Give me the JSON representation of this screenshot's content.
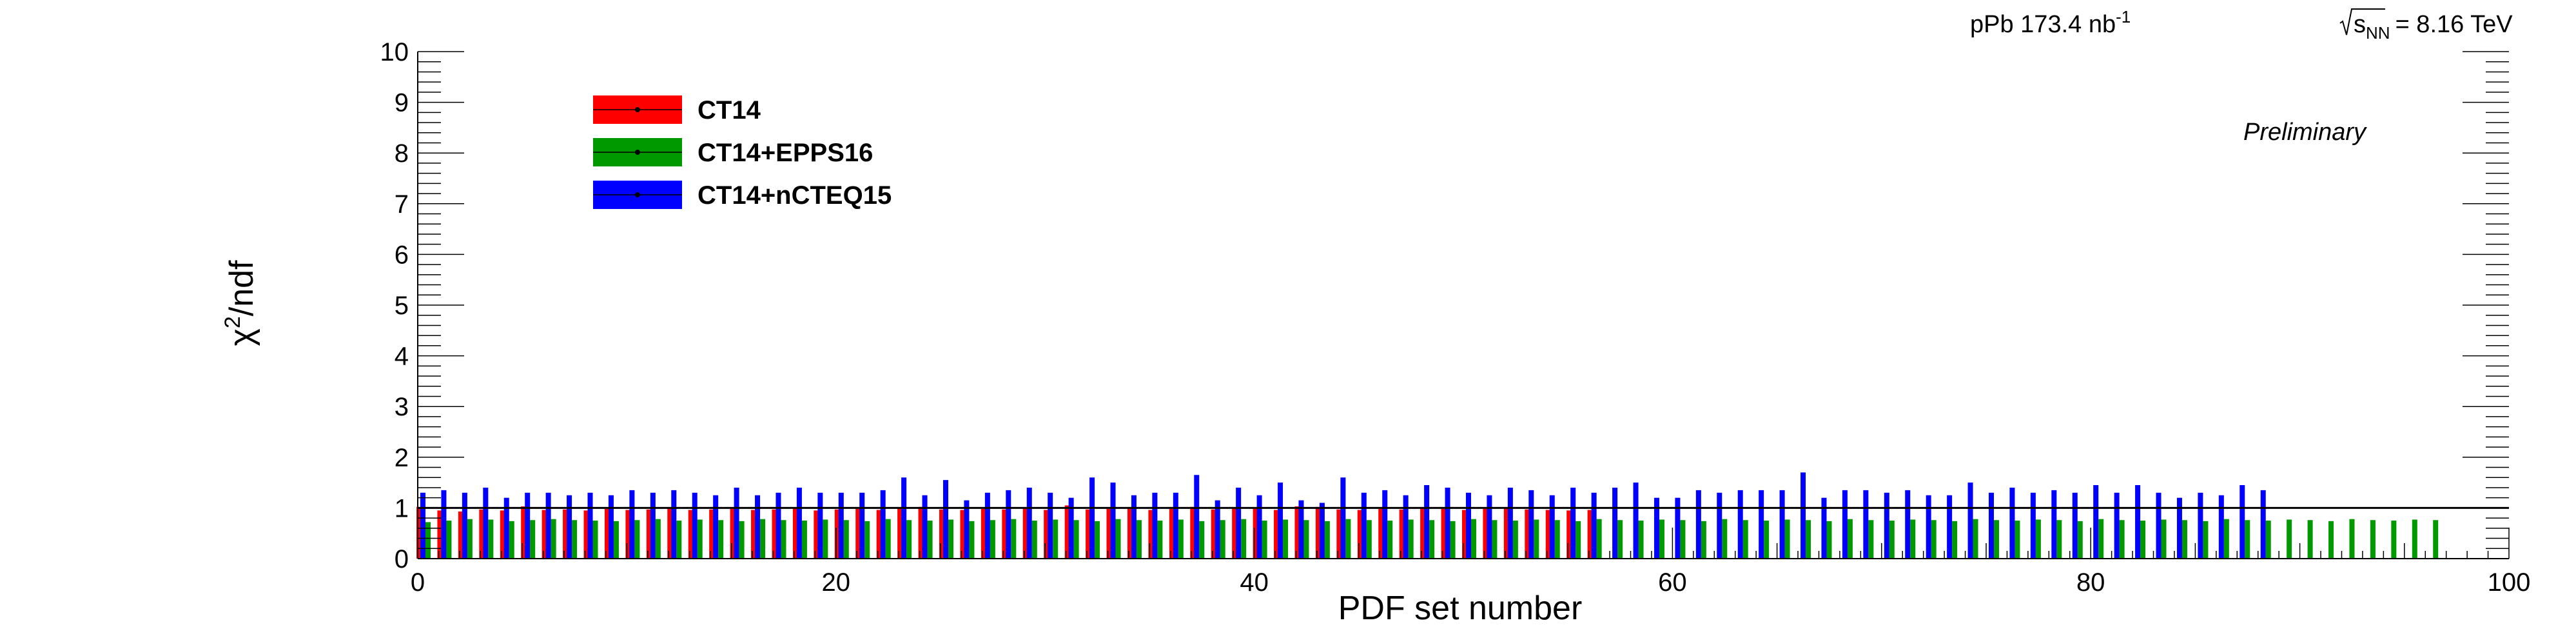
{
  "header": {
    "lumi_label": "pPb 173.4 nb",
    "lumi_exp": "-1",
    "energy_sqrt": "s",
    "energy_sub": "NN",
    "energy_value": "= 8.16 TeV",
    "preliminary": "Preliminary"
  },
  "colors": {
    "CT14": "#ff0000",
    "CT14+EPPS16": "#009900",
    "CT14+nCTEQ15": "#0000ff"
  },
  "chart_data": {
    "type": "bar",
    "title": "",
    "xlabel": "PDF set number",
    "ylabel_main": "χ",
    "ylabel_sup": "2",
    "ylabel_tail": "/ndf",
    "xlim": [
      0,
      100
    ],
    "ylim": [
      0,
      10
    ],
    "x_ticks": [
      0,
      20,
      40,
      60,
      80,
      100
    ],
    "y_ticks": [
      0,
      1,
      2,
      3,
      4,
      5,
      6,
      7,
      8,
      9,
      10
    ],
    "reference_line_y": 1,
    "legend_position": "top-left",
    "series": [
      {
        "name": "CT14",
        "x": [
          0,
          1,
          2,
          3,
          4,
          5,
          6,
          7,
          8,
          9,
          10,
          11,
          12,
          13,
          14,
          15,
          16,
          17,
          18,
          19,
          20,
          21,
          22,
          23,
          24,
          25,
          26,
          27,
          28,
          29,
          30,
          31,
          32,
          33,
          34,
          35,
          36,
          37,
          38,
          39,
          40,
          41,
          42,
          43,
          44,
          45,
          46,
          47,
          48,
          49,
          50,
          51,
          52,
          53,
          54,
          55,
          56
        ],
        "values": [
          1.02,
          0.95,
          0.93,
          0.97,
          0.95,
          1.03,
          0.96,
          0.97,
          0.95,
          0.98,
          0.96,
          0.97,
          0.99,
          0.96,
          0.97,
          0.98,
          0.96,
          0.97,
          0.99,
          0.95,
          0.97,
          0.98,
          0.96,
          1.0,
          1.02,
          0.97,
          0.96,
          0.98,
          0.97,
          0.99,
          0.96,
          1.05,
          0.97,
          0.98,
          0.99,
          0.96,
          0.98,
          1.02,
          0.97,
          1.0,
          0.99,
          0.96,
          1.03,
          1.02,
          0.97,
          0.96,
          0.98,
          0.97,
          0.99,
          0.98,
          0.96,
          0.98,
          1.0,
          0.97,
          0.96,
          0.95,
          0.96
        ]
      },
      {
        "name": "CT14+EPPS16",
        "x": [
          0,
          1,
          2,
          3,
          4,
          5,
          6,
          7,
          8,
          9,
          10,
          11,
          12,
          13,
          14,
          15,
          16,
          17,
          18,
          19,
          20,
          21,
          22,
          23,
          24,
          25,
          26,
          27,
          28,
          29,
          30,
          31,
          32,
          33,
          34,
          35,
          36,
          37,
          38,
          39,
          40,
          41,
          42,
          43,
          44,
          45,
          46,
          47,
          48,
          49,
          50,
          51,
          52,
          53,
          54,
          55,
          56,
          57,
          58,
          59,
          60,
          61,
          62,
          63,
          64,
          65,
          66,
          67,
          68,
          69,
          70,
          71,
          72,
          73,
          74,
          75,
          76,
          77,
          78,
          79,
          80,
          81,
          82,
          83,
          84,
          85,
          86,
          87,
          88,
          89,
          90,
          91,
          92,
          93,
          94,
          95,
          96
        ],
        "values": [
          0.72,
          0.75,
          0.78,
          0.77,
          0.74,
          0.76,
          0.78,
          0.76,
          0.75,
          0.74,
          0.76,
          0.78,
          0.75,
          0.77,
          0.76,
          0.74,
          0.78,
          0.76,
          0.75,
          0.77,
          0.76,
          0.74,
          0.78,
          0.76,
          0.75,
          0.77,
          0.74,
          0.76,
          0.78,
          0.75,
          0.77,
          0.76,
          0.74,
          0.78,
          0.76,
          0.75,
          0.77,
          0.74,
          0.76,
          0.78,
          0.75,
          0.77,
          0.76,
          0.74,
          0.78,
          0.76,
          0.75,
          0.77,
          0.76,
          0.74,
          0.78,
          0.76,
          0.75,
          0.77,
          0.76,
          0.74,
          0.78,
          0.76,
          0.75,
          0.77,
          0.76,
          0.74,
          0.78,
          0.76,
          0.75,
          0.77,
          0.76,
          0.74,
          0.78,
          0.76,
          0.75,
          0.77,
          0.76,
          0.74,
          0.78,
          0.76,
          0.75,
          0.77,
          0.76,
          0.74,
          0.78,
          0.76,
          0.75,
          0.77,
          0.76,
          0.74,
          0.78,
          0.76,
          0.75,
          0.77,
          0.76,
          0.74,
          0.78,
          0.76,
          0.75,
          0.77,
          0.76
        ]
      },
      {
        "name": "CT14+nCTEQ15",
        "x": [
          0,
          1,
          2,
          3,
          4,
          5,
          6,
          7,
          8,
          9,
          10,
          11,
          12,
          13,
          14,
          15,
          16,
          17,
          18,
          19,
          20,
          21,
          22,
          23,
          24,
          25,
          26,
          27,
          28,
          29,
          30,
          31,
          32,
          33,
          34,
          35,
          36,
          37,
          38,
          39,
          40,
          41,
          42,
          43,
          44,
          45,
          46,
          47,
          48,
          49,
          50,
          51,
          52,
          53,
          54,
          55,
          56,
          57,
          58,
          59,
          60,
          61,
          62,
          63,
          64,
          65,
          66,
          67,
          68,
          69,
          70,
          71,
          72,
          73,
          74,
          75,
          76,
          77,
          78,
          79,
          80,
          81,
          82,
          83,
          84,
          85,
          86,
          87,
          88
        ],
        "values": [
          1.3,
          1.35,
          1.3,
          1.4,
          1.2,
          1.3,
          1.3,
          1.25,
          1.3,
          1.25,
          1.35,
          1.3,
          1.35,
          1.3,
          1.25,
          1.4,
          1.25,
          1.3,
          1.4,
          1.3,
          1.3,
          1.3,
          1.35,
          1.6,
          1.25,
          1.55,
          1.15,
          1.3,
          1.35,
          1.4,
          1.3,
          1.2,
          1.6,
          1.5,
          1.25,
          1.3,
          1.3,
          1.65,
          1.15,
          1.4,
          1.25,
          1.5,
          1.15,
          1.1,
          1.6,
          1.3,
          1.35,
          1.25,
          1.45,
          1.4,
          1.3,
          1.25,
          1.4,
          1.35,
          1.25,
          1.4,
          1.3,
          1.4,
          1.5,
          1.2,
          1.2,
          1.35,
          1.3,
          1.35,
          1.35,
          1.35,
          1.7,
          1.2,
          1.35,
          1.35,
          1.3,
          1.35,
          1.25,
          1.25,
          1.5,
          1.3,
          1.4,
          1.3,
          1.35,
          1.3,
          1.45,
          1.3,
          1.45,
          1.3,
          1.2,
          1.3,
          1.25,
          1.45,
          1.35
        ]
      }
    ]
  }
}
